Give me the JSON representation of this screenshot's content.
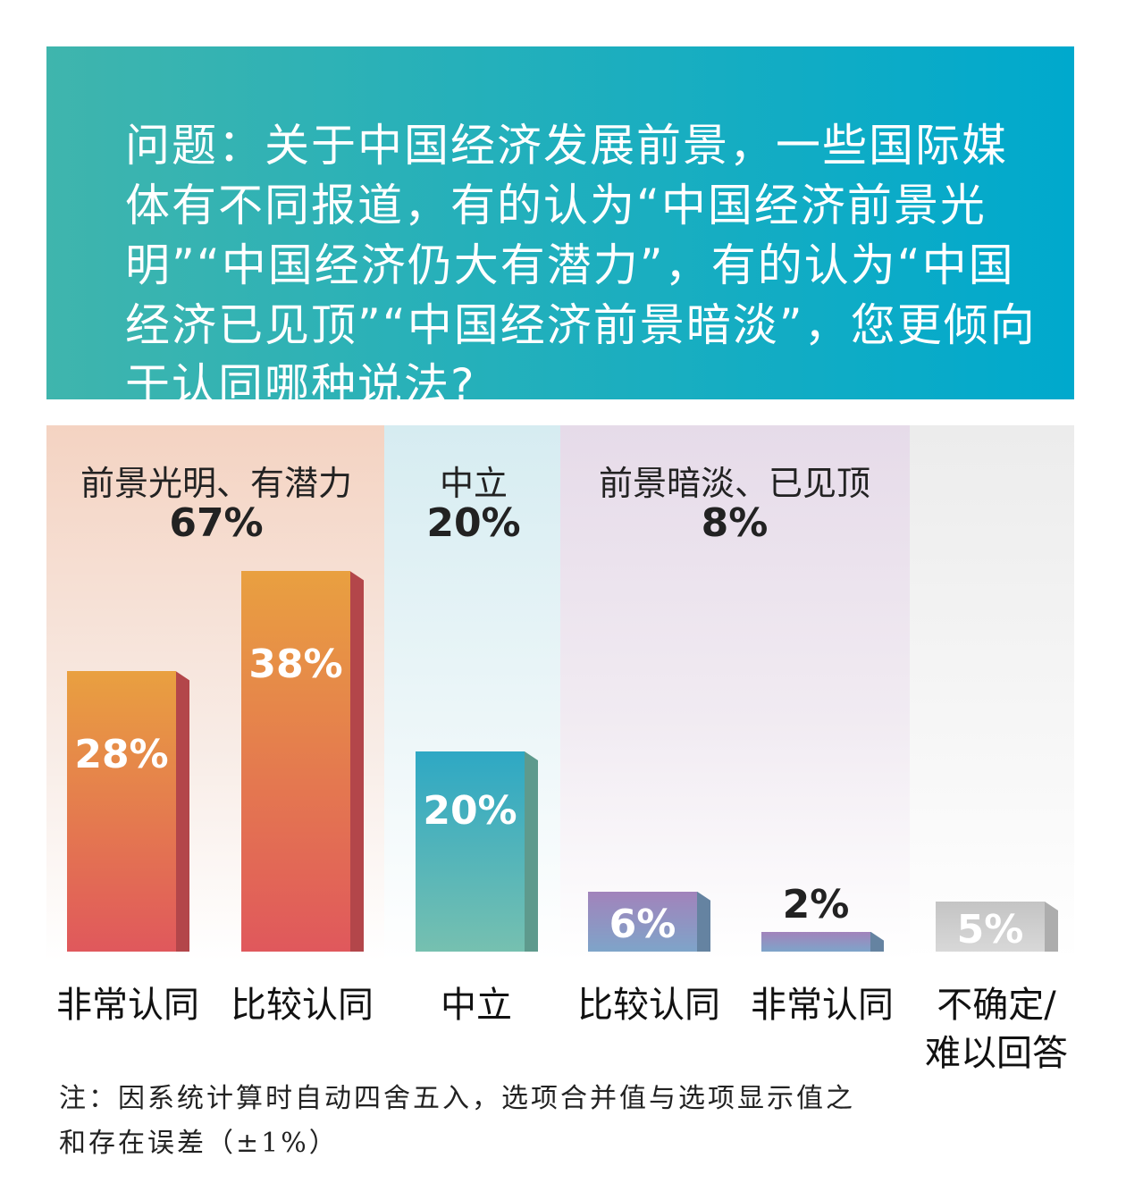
{
  "chart_data": {
    "type": "bar",
    "title": "问题：关于中国经济发展前景，一些国际媒体有不同报道，有的认为“中国经济前景光明”“中国经济仍大有潜力”，有的认为“中国经济已见顶”“中国经济前景暗淡”，您更倾向于认同哪种说法?",
    "groups": [
      {
        "label": "前景光明、有潜力",
        "value": 67,
        "value_label": "67%"
      },
      {
        "label": "中立",
        "value": 20,
        "value_label": "20%"
      },
      {
        "label": "前景暗淡、已见顶",
        "value": 8,
        "value_label": "8%"
      }
    ],
    "categories": [
      "非常认同",
      "比较认同",
      "中立",
      "比较认同",
      "非常认同",
      "不确定/难以回答"
    ],
    "values": [
      28,
      38,
      20,
      6,
      2,
      5
    ],
    "value_labels": [
      "28%",
      "38%",
      "20%",
      "6%",
      "2%",
      "5%"
    ],
    "colors": [
      "#e9a040",
      "#e9a040",
      "#2ea8c4",
      "#a283bb",
      "#a283bb",
      "#c4c4c4"
    ],
    "note": "注：因系统计算时自动四舍五入，选项合并值与选项显示值之和存在误差（±1%）"
  }
}
